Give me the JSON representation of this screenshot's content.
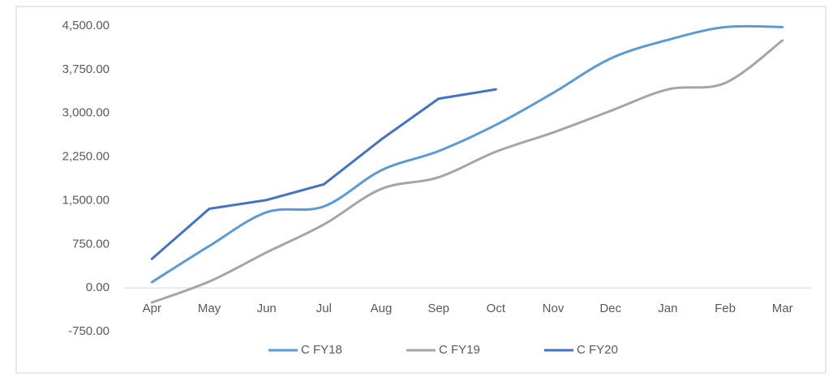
{
  "chart_data": {
    "type": "line",
    "categories": [
      "Apr",
      "May",
      "Jun",
      "Jul",
      "Aug",
      "Sep",
      "Oct",
      "Nov",
      "Dec",
      "Jan",
      "Feb",
      "Mar"
    ],
    "series": [
      {
        "name": "C FY18",
        "color": "#5b9bd5",
        "smooth": true,
        "values": [
          100,
          720,
          1300,
          1400,
          2020,
          2350,
          2800,
          3350,
          3940,
          4260,
          4480,
          4480
        ]
      },
      {
        "name": "C FY19",
        "color": "#a5a5a5",
        "smooth": true,
        "values": [
          -250,
          110,
          610,
          1090,
          1700,
          1900,
          2340,
          2670,
          3040,
          3410,
          3520,
          4250
        ]
      },
      {
        "name": "C FY20",
        "color": "#4472c4",
        "smooth": false,
        "values": [
          500,
          1360,
          1510,
          1780,
          2550,
          3250,
          3410,
          null,
          null,
          null,
          null,
          null
        ]
      }
    ],
    "ylim": [
      -750,
      4500
    ],
    "yticks": [
      {
        "value": -750,
        "label": "-750.00"
      },
      {
        "value": 0,
        "label": "0.00"
      },
      {
        "value": 750,
        "label": "750.00"
      },
      {
        "value": 1500,
        "label": "1,500.00"
      },
      {
        "value": 2250,
        "label": "2,250.00"
      },
      {
        "value": 3000,
        "label": "3,000.00"
      },
      {
        "value": 3750,
        "label": "3,750.00"
      },
      {
        "value": 4500,
        "label": "4,500.00"
      }
    ],
    "grid": false,
    "legend": "bottom"
  }
}
